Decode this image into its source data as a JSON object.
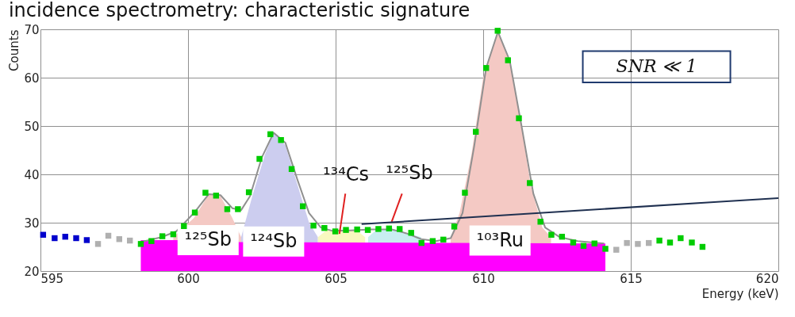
{
  "chart_data": {
    "type": "scatter",
    "title": "incidence spectrometry: characteristic signature",
    "xlabel": "Energy (keV)",
    "ylabel": "Counts",
    "xlim": [
      595,
      620
    ],
    "xticks": [
      595,
      600,
      605,
      610,
      615,
      620
    ],
    "ylim": [
      20,
      70
    ],
    "yticks": [
      20,
      30,
      40,
      50,
      60,
      70
    ],
    "grid": true,
    "series": [
      {
        "type": "area",
        "color": "#f4c9c4",
        "x": [
          599.5,
          600.2,
          600.7,
          601.1,
          601.5,
          601.8
        ],
        "values": [
          27.0,
          31,
          35.8,
          35.5,
          31,
          27.0
        ]
      },
      {
        "type": "area",
        "color": "#cccdef",
        "x": [
          601.8,
          602.2,
          602.6,
          602.9,
          603.3,
          603.7,
          604.1,
          604.4
        ],
        "values": [
          27.0,
          36,
          44,
          48.6,
          46,
          38,
          30,
          27.0
        ]
      },
      {
        "type": "area",
        "color": "#f8f8c0",
        "x": [
          604.4,
          604.7,
          605.2,
          605.7,
          606.0
        ],
        "values": [
          27.0,
          28.5,
          28.3,
          28.5,
          27.0
        ]
      },
      {
        "type": "area",
        "color": "#c8eef0",
        "x": [
          606.1,
          606.4,
          607.0,
          607.6,
          607.9
        ],
        "values": [
          27.0,
          28.6,
          28.6,
          27.5,
          27.0
        ]
      },
      {
        "type": "area",
        "color": "#f4c9c4",
        "x": [
          608.9,
          609.2,
          609.6,
          610.0,
          610.5,
          610.9,
          611.3,
          611.6,
          612.0,
          612.3
        ],
        "values": [
          27.0,
          32,
          44,
          60,
          69.5,
          63,
          50,
          38,
          29,
          27.0
        ]
      },
      {
        "type": "area",
        "color": "#ff00ff",
        "x": [
          598.4,
          601.7,
          601.7,
          614.14
        ],
        "values": [
          26.4,
          26.4,
          26.0,
          25.7
        ]
      },
      {
        "type": "line",
        "color": "#909090",
        "x": [
          598.4,
          599.1,
          599.6,
          600.2,
          600.7,
          601.1,
          601.5,
          601.8,
          602.1,
          602.5,
          602.9,
          603.3,
          603.7,
          604.1,
          604.5,
          604.9,
          605.5,
          606.2,
          606.9,
          607.4,
          607.9,
          608.4,
          608.9,
          609.3,
          609.7,
          610.1,
          610.5,
          610.9,
          611.3,
          611.7,
          612.1,
          612.6,
          613.2,
          614.1
        ],
        "values": [
          26.0,
          27.0,
          28.2,
          32,
          35.9,
          35.7,
          33,
          32.6,
          35.5,
          43.5,
          48.6,
          46.5,
          39,
          32,
          29,
          28.3,
          28.4,
          28.6,
          28.6,
          27.8,
          26.6,
          26.2,
          26.8,
          32,
          46,
          62,
          69.5,
          63.5,
          50,
          36,
          29,
          27,
          26.2,
          25.7
        ]
      },
      {
        "type": "line",
        "color": "#e02020",
        "x": [
          605.33,
          605.13
        ],
        "values": [
          36.0,
          27.7
        ]
      },
      {
        "type": "line",
        "color": "#e02020",
        "x": [
          607.25,
          606.9
        ],
        "values": [
          36.0,
          30.2
        ]
      },
      {
        "type": "line",
        "color": "#1f3050",
        "x": [
          605.88,
          620
        ],
        "values": [
          29.7,
          35.1
        ]
      },
      {
        "marker": "square",
        "color": "#0000cc",
        "x": [
          595.09,
          595.48,
          595.84,
          596.21,
          596.57
        ],
        "values": [
          27.5,
          26.8,
          27.1,
          26.8,
          26.4
        ]
      },
      {
        "marker": "square",
        "color": "#b0b0b0",
        "x": [
          596.95,
          597.3,
          597.67,
          598.03,
          614.51,
          614.87,
          615.24,
          615.61
        ],
        "values": [
          25.6,
          27.3,
          26.6,
          26.3,
          24.4,
          25.8,
          25.6,
          25.8
        ]
      },
      {
        "marker": "square",
        "color": "#00cc00",
        "x": [
          598.4,
          598.76,
          599.13,
          599.5,
          599.86,
          600.23,
          600.59,
          600.95,
          601.33,
          601.69,
          602.06,
          602.42,
          602.79,
          603.15,
          603.51,
          603.89,
          604.25,
          604.62,
          604.99,
          605.35,
          605.73,
          606.09,
          606.45,
          606.81,
          607.17,
          607.56,
          607.91,
          608.29,
          608.65,
          609.02,
          609.38,
          609.75,
          610.1,
          610.49,
          610.84,
          611.21,
          611.58,
          611.94,
          612.31,
          612.67,
          613.05,
          613.4,
          613.77,
          614.14,
          615.97,
          616.33,
          616.69,
          617.07,
          617.43
        ],
        "values": [
          25.6,
          26.2,
          27.2,
          27.6,
          29.3,
          32.1,
          36.2,
          35.6,
          32.8,
          32.8,
          36.3,
          43.2,
          48.3,
          47.1,
          41.1,
          33.4,
          29.4,
          28.9,
          28.2,
          28.5,
          28.6,
          28.5,
          28.7,
          28.8,
          28.7,
          27.9,
          25.8,
          26.2,
          26.5,
          29.2,
          36.2,
          48.8,
          62.0,
          69.7,
          63.6,
          51.6,
          38.2,
          30.2,
          27.5,
          27.1,
          25.9,
          25.2,
          25.7,
          24.6,
          26.3,
          25.9,
          26.8,
          25.9,
          25.0
        ]
      }
    ],
    "annotations": [
      {
        "text": "¹²⁵Sb",
        "x": 600.68,
        "y": 26.4
      },
      {
        "text": "¹²⁴Sb",
        "x": 602.9,
        "y": 26.1
      },
      {
        "text": "¹⁰³Ru",
        "x": 610.57,
        "y": 26.3
      },
      "¹³⁴Cs",
      "¹²⁵Sb",
      "SNR ≪ 1"
    ]
  }
}
